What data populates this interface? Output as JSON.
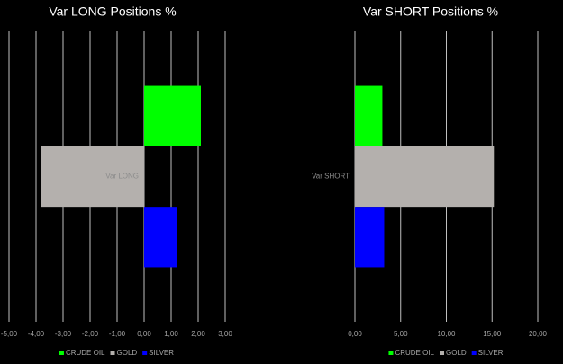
{
  "chart_data": [
    {
      "type": "bar",
      "orientation": "horizontal",
      "title": "Var LONG Positions %",
      "categories": [
        "Var LONG"
      ],
      "series": [
        {
          "name": "CRUDE OIL",
          "color": "#00ff00",
          "values": [
            2.1
          ]
        },
        {
          "name": "GOLD",
          "color": "#b4b0ad",
          "values": [
            -3.8
          ]
        },
        {
          "name": "SILVER",
          "color": "#0000ff",
          "values": [
            1.2
          ]
        }
      ],
      "xlim": [
        -5,
        3
      ],
      "xticks": [
        {
          "value": -5,
          "label": "-5,00"
        },
        {
          "value": -4,
          "label": "-4,00"
        },
        {
          "value": -3,
          "label": "-3,00"
        },
        {
          "value": -2,
          "label": "-2,00"
        },
        {
          "value": -1,
          "label": "-1,00"
        },
        {
          "value": 0,
          "label": "0,00"
        },
        {
          "value": 1,
          "label": "1,00"
        },
        {
          "value": 2,
          "label": "2,00"
        },
        {
          "value": 3,
          "label": "3,00"
        }
      ],
      "grid": true,
      "legend": "bottom"
    },
    {
      "type": "bar",
      "orientation": "horizontal",
      "title": "Var SHORT Positions %",
      "categories": [
        "Var SHORT"
      ],
      "series": [
        {
          "name": "CRUDE OIL",
          "color": "#00ff00",
          "values": [
            3.0
          ]
        },
        {
          "name": "GOLD",
          "color": "#b4b0ad",
          "values": [
            15.2
          ]
        },
        {
          "name": "SILVER",
          "color": "#0000ff",
          "values": [
            3.2
          ]
        }
      ],
      "xlim": [
        0,
        20
      ],
      "xticks": [
        {
          "value": 0,
          "label": "0,00"
        },
        {
          "value": 5,
          "label": "5,00"
        },
        {
          "value": 10,
          "label": "10,00"
        },
        {
          "value": 15,
          "label": "15,00"
        },
        {
          "value": 20,
          "label": "20,00"
        }
      ],
      "grid": true,
      "legend": "bottom"
    }
  ]
}
